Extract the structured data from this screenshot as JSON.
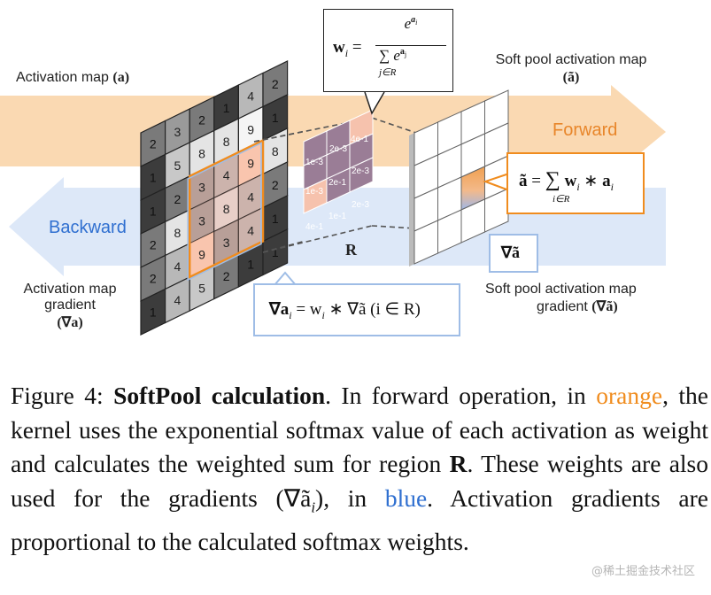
{
  "figure": {
    "activation_map_label": "Activation map",
    "activation_map_symbol": "(a)",
    "softpool_map_label": "Soft pool activation map",
    "softpool_map_symbol": "(ã)",
    "forward_label": "Forward",
    "backward_label": "Backward",
    "grad_label_line1": "Activation map",
    "grad_label_line2": "gradient",
    "grad_label_symbol": "(∇a)",
    "softpool_grad_line1": "Soft pool activation map",
    "softpool_grad_line2": "gradient",
    "softpool_grad_symbol": "(∇ã)",
    "region_label": "R",
    "grad_symbol_box": "∇ã",
    "weight_formula": {
      "lhs": "w",
      "sub": "i",
      "num": "e",
      "num_sup": "a",
      "num_sup_sub": "i",
      "den_sum": "∑",
      "den_sum_sub": "j∈R",
      "den": "e",
      "den_sup": "a",
      "den_sup_sub": "j"
    },
    "pool_formula": {
      "lhs": "ã",
      "sum": "∑",
      "sum_sub": "i∈R",
      "w": "w",
      "w_sub": "i",
      "op": "∗",
      "a": "a",
      "a_sub": "i"
    },
    "grad_formula": "∇a",
    "grad_formula_sub": "i",
    "grad_formula_rhs": "= w",
    "grad_formula_rhs_sub": "i",
    "grad_formula_tail": "∗ ∇ã (i ∈ R)",
    "grid_values": [
      [
        "2",
        "3",
        "2",
        "1",
        "4",
        "2"
      ],
      [
        "1",
        "5",
        "8",
        "8",
        "9",
        "1"
      ],
      [
        "1",
        "2",
        "3",
        "4",
        "9",
        "8"
      ],
      [
        "2",
        "8",
        "3",
        "8",
        "4",
        "2"
      ],
      [
        "2",
        "4",
        "9",
        "3",
        "4",
        "1"
      ],
      [
        "1",
        "4",
        "5",
        "2",
        "1",
        "1"
      ]
    ],
    "weight_grid": [
      [
        "2e-3",
        "4e-1"
      ],
      [
        "1e-3",
        "2e-1",
        "2e-3"
      ],
      [
        "1e-3",
        "1e-1",
        "2e-3"
      ],
      [
        "2e-3",
        "2e-3"
      ],
      [
        "4e-1"
      ]
    ]
  },
  "caption": {
    "prefix": "Figure 4: ",
    "title": "SoftPool calculation",
    "part1": ". In forward operation, in ",
    "orange_word": "orange",
    "part2": ", the kernel uses the exponential softmax value of each activation as weight and calculates the weighted sum for region ",
    "region_symbol": "R",
    "part3": ". These weights are also used for the gradients (",
    "grad_symbol": "∇ã",
    "grad_sub": "i",
    "part4": "), in ",
    "blue_word": "blue",
    "part5": ". Activation gradients are proportional to the calculated softmax weights."
  },
  "watermark": "@稀土掘金技术社区",
  "colors": {
    "forward_arrow": "#f9cfa0",
    "backward_arrow": "#d6e4f8",
    "orange_accent": "#f08c1e",
    "blue_accent": "#2f6fd0",
    "softmax_purple": "#9c7f94"
  }
}
